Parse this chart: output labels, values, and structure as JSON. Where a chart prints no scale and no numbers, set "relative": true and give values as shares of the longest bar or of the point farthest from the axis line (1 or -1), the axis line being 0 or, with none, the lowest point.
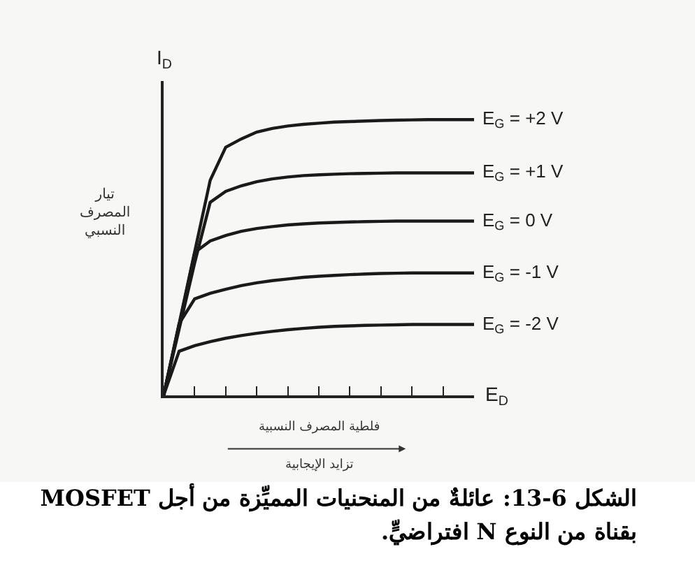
{
  "chart_data": {
    "type": "line",
    "relative": true,
    "title": "الشكل 6-13: عائلةٌ من المنحنيات المميِّزة من أجل MOSFET بقناة من النوع N افتراضيٍّ.",
    "xlabel": "E$_{D}$",
    "ylabel": "I$_{D}$",
    "annotations": [
      "تيار المصرف النسبي",
      "فلطية المصرف النسبية",
      "تزايد الإيجابية"
    ],
    "categories": [
      null,
      null,
      null,
      null,
      null,
      null,
      null,
      null,
      null,
      null,
      null,
      null,
      null,
      null,
      null,
      null,
      null,
      null,
      null,
      null,
      null
    ],
    "series": [
      {
        "name": "E$_{G}$ = +2 V",
        "color": "#1a1a1a",
        "values": [
          0,
          0.26,
          0.52,
          0.78,
          0.9,
          0.93,
          0.955,
          0.968,
          0.977,
          0.983,
          0.987,
          0.991,
          0.993,
          0.995,
          0.997,
          0.998,
          0.999,
          1,
          1,
          1,
          1
        ]
      },
      {
        "name": "E$_{G}$ = +1 V",
        "color": "#1a1a1a",
        "values": [
          0,
          0.24,
          0.48,
          0.7,
          0.74,
          0.76,
          0.775,
          0.785,
          0.792,
          0.797,
          0.8,
          0.802,
          0.804,
          0.805,
          0.806,
          0.807,
          0.807,
          0.807,
          0.807,
          0.807,
          0.807
        ]
      },
      {
        "name": "E$_{G}$ = 0 V",
        "color": "#1a1a1a",
        "values": [
          0,
          0.254,
          0.518,
          0.56,
          0.58,
          0.595,
          0.605,
          0.612,
          0.618,
          0.622,
          0.625,
          0.627,
          0.629,
          0.63,
          0.631,
          0.632,
          0.632,
          0.632,
          0.632,
          0.632,
          0.632
        ]
      },
      {
        "name": "E$_{G}$ = -1 V",
        "color": "#1a1a1a",
        "values": [
          0,
          0.26,
          0.35,
          0.37,
          0.385,
          0.398,
          0.408,
          0.416,
          0.422,
          0.428,
          0.432,
          0.435,
          0.438,
          0.44,
          0.442,
          0.443,
          0.444,
          0.444,
          0.444,
          0.444,
          0.444
        ]
      },
      {
        "name": "E$_{G}$ = -2 V",
        "color": "#1a1a1a",
        "values": [
          0,
          0.16,
          0.18,
          0.195,
          0.207,
          0.217,
          0.225,
          0.232,
          0.238,
          0.243,
          0.247,
          0.25,
          0.252,
          0.254,
          0.255,
          0.256,
          0.257,
          0.257,
          0.257,
          0.257,
          0.257
        ]
      }
    ],
    "grid": false,
    "legend": false,
    "marker": "none",
    "line_style": "solid"
  }
}
